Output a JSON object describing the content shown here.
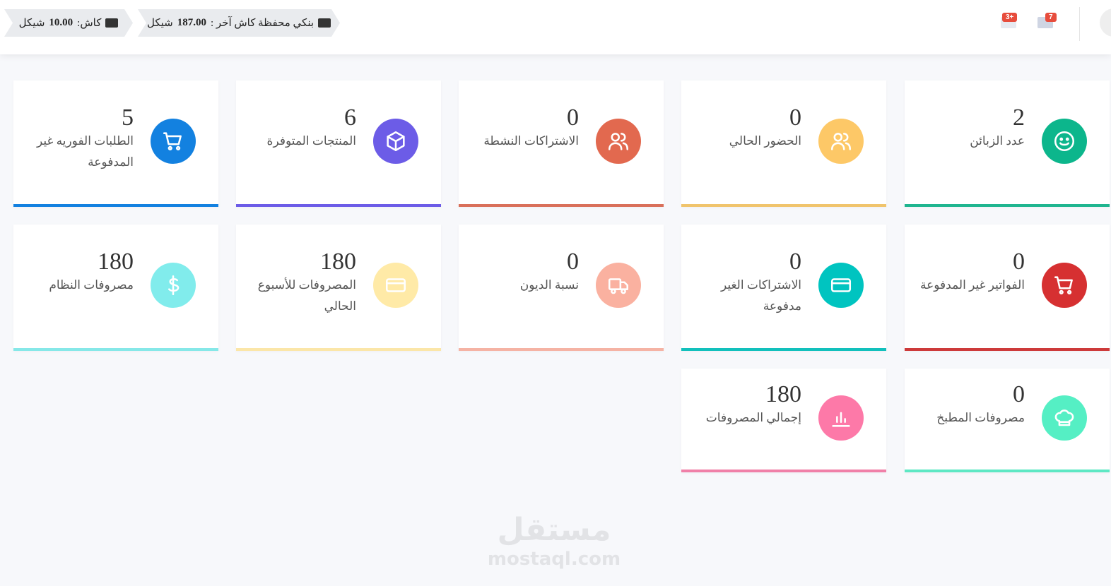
{
  "topbar": {
    "cash": {
      "label": "كاش:",
      "amount": "10.00",
      "currency": "شيكل",
      "icon": "money-icon"
    },
    "bank": {
      "label": "بنكي محفظة كاش آخر :",
      "amount": "187.00",
      "currency": "شيكل",
      "icon": "wallet-icon"
    },
    "notifications_badge": "3+",
    "messages_badge": "7"
  },
  "cards": [
    {
      "value": "2",
      "label": "عدد الزبائن",
      "icon": "smile-icon",
      "color": "#0cb68c",
      "bar": "#1fb58f",
      "left": 0
    },
    {
      "value": "0",
      "label": "الحضور الحالي",
      "icon": "users-icon",
      "color": "#fdc867",
      "bar": "#f0c46c"
    },
    {
      "value": "0",
      "label": "الاشتراكات النشطة",
      "icon": "users-icon",
      "color": "#e2694f",
      "bar": "#d9705a"
    },
    {
      "value": "6",
      "label": "المنتجات المتوفرة",
      "icon": "box-icon",
      "color": "#6c5ce7",
      "bar": "#6c5ce7"
    },
    {
      "value": "5",
      "label": "الطلبات الفوريه غير المدفوعة",
      "icon": "cart-icon",
      "color": "#1381e0",
      "bar": "#1381e0"
    },
    {
      "value": "0",
      "label": "الفواتير غير المدفوعة",
      "icon": "cart-icon",
      "color": "#d63031",
      "bar": "#cd3a3a"
    },
    {
      "value": "0",
      "label": "الاشتراكات الغير مدفوعة",
      "icon": "credit-card-icon",
      "color": "#00c4c0",
      "bar": "#12c0bc"
    },
    {
      "value": "0",
      "label": "نسبة الديون",
      "icon": "truck-icon",
      "color": "#fab1a0",
      "bar": "#f5b3a4"
    },
    {
      "value": "180",
      "label": "المصروفات للأسبوع الحالي",
      "icon": "credit-card-icon",
      "color": "#ffeaa7",
      "bar": "#fbe6a8"
    },
    {
      "value": "180",
      "label": "مصروفات النظام",
      "icon": "dollar-icon",
      "color": "#81ecec",
      "bar": "#86e8e8"
    },
    {
      "value": "0",
      "label": "مصروفات المطبخ",
      "icon": "chef-hat-icon",
      "color": "#55efc4",
      "bar": "#5ee8c4"
    },
    {
      "value": "180",
      "label": "إجمالي المصروفات",
      "icon": "bar-chart-icon",
      "color": "#fd79a8",
      "bar": "#f080a8"
    }
  ],
  "watermark": {
    "arabic": "مستقل",
    "latin": "mostaql.com"
  }
}
